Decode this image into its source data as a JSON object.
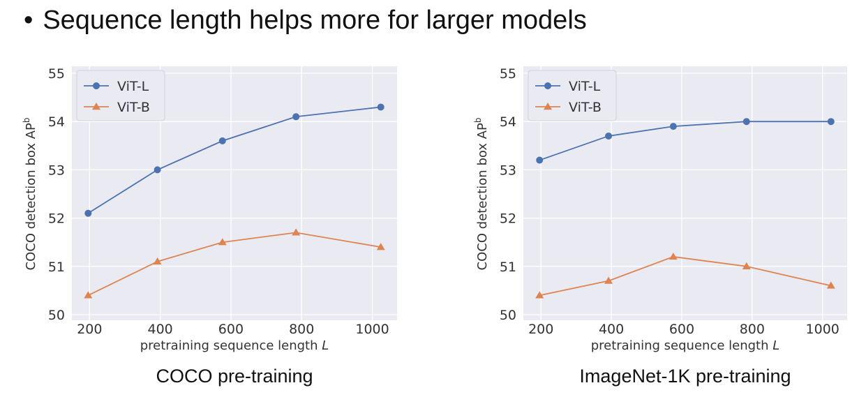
{
  "heading": {
    "bullet": "•",
    "text": "Sequence length helps more for larger models"
  },
  "colors": {
    "vit_l": "#4c72b0",
    "vit_b": "#dd8452",
    "plot_bg": "#eaeaf2",
    "grid": "#ffffff"
  },
  "chart_data": [
    {
      "type": "line",
      "caption": "COCO pre-training",
      "xlabel": "pretraining sequence length",
      "xlabel_var": "L",
      "ylabel": "COCO detection box AP",
      "ylabel_sup": "b",
      "x": [
        196,
        392,
        576,
        784,
        1024
      ],
      "xticks": [
        200,
        400,
        600,
        800,
        1000
      ],
      "yticks": [
        50,
        51,
        52,
        53,
        54,
        55
      ],
      "xlim": [
        150,
        1070
      ],
      "ylim": [
        50,
        55
      ],
      "grid": true,
      "legend_position": "top-left",
      "series": [
        {
          "name": "ViT-L",
          "marker": "circle",
          "values": [
            52.1,
            53.0,
            53.6,
            54.1,
            54.3
          ]
        },
        {
          "name": "ViT-B",
          "marker": "triangle",
          "values": [
            50.4,
            51.1,
            51.5,
            51.7,
            51.4
          ]
        }
      ]
    },
    {
      "type": "line",
      "caption": "ImageNet-1K pre-training",
      "xlabel": "pretraining sequence length",
      "xlabel_var": "L",
      "ylabel": "COCO detection box AP",
      "ylabel_sup": "b",
      "x": [
        196,
        392,
        576,
        784,
        1024
      ],
      "xticks": [
        200,
        400,
        600,
        800,
        1000
      ],
      "yticks": [
        50,
        51,
        52,
        53,
        54,
        55
      ],
      "xlim": [
        150,
        1070
      ],
      "ylim": [
        50,
        55
      ],
      "grid": true,
      "legend_position": "top-left",
      "series": [
        {
          "name": "ViT-L",
          "marker": "circle",
          "values": [
            53.2,
            53.7,
            53.9,
            54.0,
            54.0
          ]
        },
        {
          "name": "ViT-B",
          "marker": "triangle",
          "values": [
            50.4,
            50.7,
            51.2,
            51.0,
            50.6
          ]
        }
      ]
    }
  ]
}
